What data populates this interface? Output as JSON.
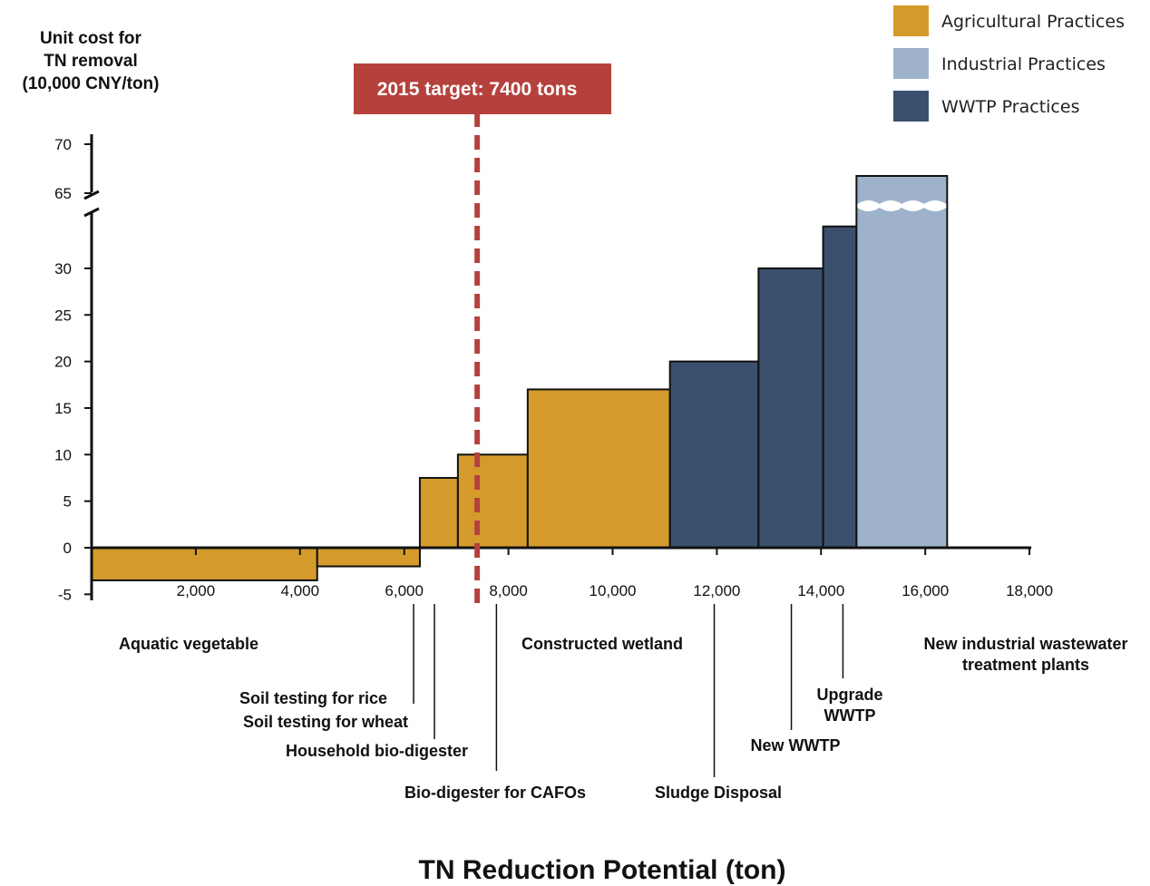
{
  "chart_data": {
    "type": "bar",
    "variant": "marginal-abatement-cost-curve",
    "xlabel": "TN Reduction Potential (ton)",
    "ylabel_lines": [
      "Unit cost for",
      "TN removal",
      "(10,000 CNY/ton)"
    ],
    "x_ticks": [
      2000,
      4000,
      6000,
      8000,
      10000,
      12000,
      14000,
      16000,
      18000
    ],
    "x_tick_labels": [
      "2,000",
      "4,000",
      "6,000",
      "8,000",
      "10,000",
      "12,000",
      "14,000",
      "16,000",
      "18,000"
    ],
    "y_ticks": [
      -5,
      0,
      5,
      10,
      15,
      20,
      25,
      30,
      65,
      70
    ],
    "y_tick_labels": [
      "-5",
      "0",
      "5",
      "10",
      "15",
      "20",
      "25",
      "30",
      "65",
      "70"
    ],
    "y_axis_break": true,
    "xlim": [
      0,
      18000
    ],
    "target": {
      "value": 7400,
      "label": "2015 target: 7400 tons",
      "color": "#b5413d"
    },
    "legend_position": "top-right",
    "colors": {
      "Agricultural Practices": "#d49b2c",
      "Industrial Practices": "#9fb2cb",
      "WWTP Practices": "#3a506e"
    },
    "series": [
      {
        "name": "Agricultural Practices"
      },
      {
        "name": "Industrial Practices"
      },
      {
        "name": "WWTP Practices"
      }
    ],
    "blocks": [
      {
        "x0": 0,
        "x1": 4330,
        "y": -3.5,
        "category": "Agricultural Practices"
      },
      {
        "x0": 4330,
        "x1": 6300,
        "y": -2,
        "category": "Agricultural Practices"
      },
      {
        "x0": 6300,
        "x1": 7030,
        "y": 7.5,
        "category": "Agricultural Practices"
      },
      {
        "x0": 7030,
        "x1": 8370,
        "y": 10,
        "category": "Agricultural Practices"
      },
      {
        "x0": 8370,
        "x1": 11100,
        "y": 17,
        "category": "Agricultural Practices"
      },
      {
        "x0": 11100,
        "x1": 12800,
        "y": 20,
        "category": "WWTP Practices"
      },
      {
        "x0": 12800,
        "x1": 14040,
        "y": 30,
        "category": "WWTP Practices"
      },
      {
        "x0": 14040,
        "x1": 14680,
        "y": 34.5,
        "category": "WWTP Practices"
      },
      {
        "x0": 14680,
        "x1": 16420,
        "y": 66,
        "category": "Industrial Practices",
        "broken": true
      }
    ],
    "annotations": [
      {
        "lines": [
          "Aquatic vegetable"
        ],
        "x": 1800,
        "row": 0,
        "anchor": "middle"
      },
      {
        "lines": [
          "Soil testing for rice"
        ],
        "x": 6180,
        "row": 2,
        "anchor": "end",
        "leader_x": 6180
      },
      {
        "lines": [
          "Soil testing for wheat"
        ],
        "x": 6180,
        "row": 3,
        "anchor": "end"
      },
      {
        "lines": [
          "Household bio-digester"
        ],
        "x": 6580,
        "row": 4,
        "anchor": "end",
        "leader_x": 6580
      },
      {
        "lines": [
          "Bio-digester for CAFOs"
        ],
        "x": 7770,
        "row": 6,
        "anchor": "middle",
        "leader_x": 7770
      },
      {
        "lines": [
          "Constructed wetland"
        ],
        "x": 9730,
        "row": 0,
        "anchor": "middle"
      },
      {
        "lines": [
          "Sludge Disposal"
        ],
        "x": 11950,
        "row": 6,
        "anchor": "middle",
        "leader_x": 11950
      },
      {
        "lines": [
          "New WWTP"
        ],
        "x": 13430,
        "row": 5,
        "anchor": "middle",
        "leader_x": 13430
      },
      {
        "lines": [
          "Upgrade",
          "WWTP"
        ],
        "x": 14420,
        "row": 2,
        "anchor": "middle",
        "leader_x": 14420
      },
      {
        "lines": [
          "New industrial wastewater",
          "treatment plants"
        ],
        "x": 17220,
        "row": 0,
        "anchor": "middle"
      }
    ]
  }
}
